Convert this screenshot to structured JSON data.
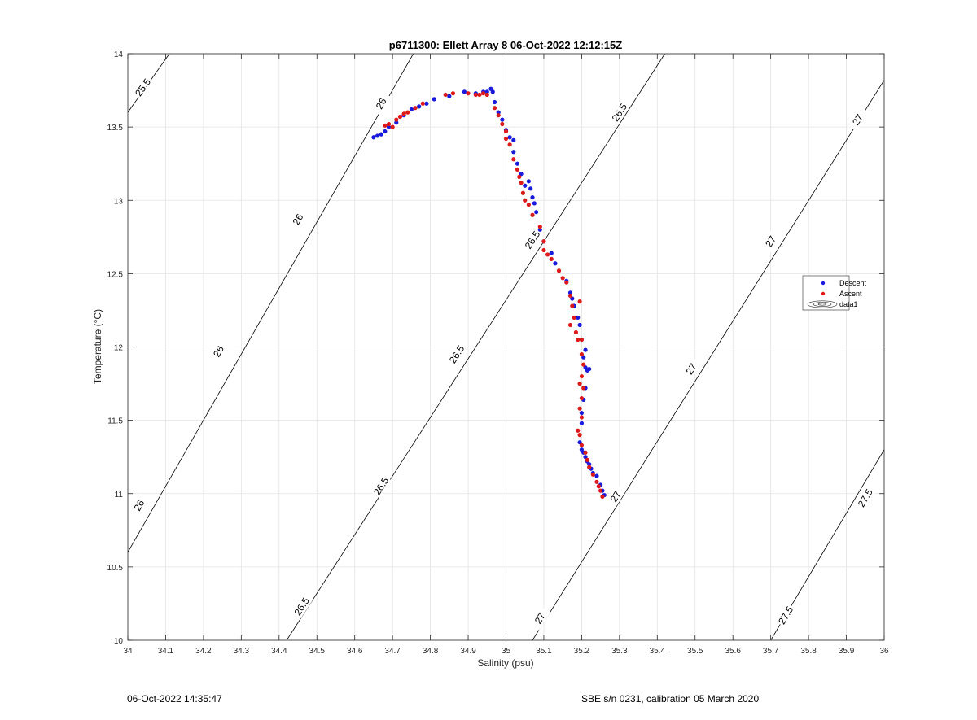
{
  "footer": {
    "timestamp": "06-Oct-2022 14:35:47",
    "calibration": "SBE s/n 0231, calibration 05 March 2020"
  },
  "chart_data": {
    "type": "scatter",
    "title": "p6711300: Ellett Array 8 06-Oct-2022 12:12:15Z",
    "xlabel": "Salinity (psu)",
    "ylabel": "Temperature (°C)",
    "xlim": [
      34,
      36
    ],
    "ylim": [
      10,
      14
    ],
    "xticks": [
      "34",
      "34.1",
      "34.2",
      "34.3",
      "34.4",
      "34.5",
      "34.6",
      "34.7",
      "34.8",
      "34.9",
      "35",
      "35.1",
      "35.2",
      "35.3",
      "35.4",
      "35.5",
      "35.6",
      "35.7",
      "35.8",
      "35.9",
      "36"
    ],
    "yticks": [
      "10",
      "10.5",
      "11",
      "11.5",
      "12",
      "12.5",
      "13",
      "13.5",
      "14"
    ],
    "grid": true,
    "legend_position": "right",
    "legend": [
      "Descent",
      "Ascent",
      "data1"
    ],
    "colors": {
      "Descent": "#1a1adc",
      "Ascent": "#dc1a1a",
      "contour": "#000000",
      "grid": "#e3e3e3"
    },
    "contours": [
      {
        "label": "25.5",
        "points": [
          [
            34,
            13.6
          ],
          [
            34.11,
            14.0
          ]
        ],
        "labels_at": [
          [
            34.04,
            13.77
          ]
        ]
      },
      {
        "label": "26",
        "points": [
          [
            34,
            10.6
          ],
          [
            34.755,
            14.0
          ]
        ],
        "labels_at": [
          [
            34.03,
            10.92
          ],
          [
            34.24,
            11.97
          ],
          [
            34.45,
            12.87
          ],
          [
            34.67,
            13.66
          ]
        ]
      },
      {
        "label": "26.5",
        "points": [
          [
            34.42,
            10.0
          ],
          [
            35.42,
            14.0
          ]
        ],
        "labels_at": [
          [
            34.46,
            10.23
          ],
          [
            34.67,
            11.05
          ],
          [
            34.87,
            11.95
          ],
          [
            35.07,
            12.73
          ],
          [
            35.3,
            13.6
          ]
        ]
      },
      {
        "label": "27",
        "points": [
          [
            35.07,
            10.0
          ],
          [
            36,
            13.82
          ]
        ],
        "labels_at": [
          [
            35.09,
            10.15
          ],
          [
            35.29,
            10.98
          ],
          [
            35.49,
            11.85
          ],
          [
            35.7,
            12.72
          ],
          [
            35.93,
            13.55
          ]
        ]
      },
      {
        "label": "27.5",
        "points": [
          [
            35.7,
            10.0
          ],
          [
            36,
            11.3
          ]
        ],
        "labels_at": [
          [
            35.74,
            10.17
          ],
          [
            35.95,
            10.97
          ]
        ]
      }
    ],
    "series": [
      {
        "name": "Descent",
        "points": [
          [
            34.65,
            13.43
          ],
          [
            34.66,
            13.44
          ],
          [
            34.67,
            13.45
          ],
          [
            34.68,
            13.47
          ],
          [
            34.69,
            13.5
          ],
          [
            34.71,
            13.53
          ],
          [
            34.73,
            13.58
          ],
          [
            34.75,
            13.62
          ],
          [
            34.77,
            13.64
          ],
          [
            34.79,
            13.66
          ],
          [
            34.81,
            13.69
          ],
          [
            34.85,
            13.71
          ],
          [
            34.89,
            13.74
          ],
          [
            34.92,
            13.73
          ],
          [
            34.94,
            13.74
          ],
          [
            34.95,
            13.74
          ],
          [
            34.96,
            13.76
          ],
          [
            34.965,
            13.74
          ],
          [
            34.97,
            13.67
          ],
          [
            34.98,
            13.6
          ],
          [
            34.99,
            13.55
          ],
          [
            35.0,
            13.48
          ],
          [
            35.01,
            13.43
          ],
          [
            35.02,
            13.41
          ],
          [
            35.02,
            13.33
          ],
          [
            35.03,
            13.25
          ],
          [
            35.04,
            13.18
          ],
          [
            35.05,
            13.1
          ],
          [
            35.06,
            13.13
          ],
          [
            35.065,
            13.08
          ],
          [
            35.07,
            13.02
          ],
          [
            35.075,
            12.98
          ],
          [
            35.08,
            12.92
          ],
          [
            35.09,
            12.8
          ],
          [
            35.1,
            12.72
          ],
          [
            35.12,
            12.64
          ],
          [
            35.13,
            12.57
          ],
          [
            35.16,
            12.45
          ],
          [
            35.17,
            12.37
          ],
          [
            35.175,
            12.33
          ],
          [
            35.18,
            12.28
          ],
          [
            35.19,
            12.2
          ],
          [
            35.195,
            12.15
          ],
          [
            35.2,
            12.05
          ],
          [
            35.21,
            11.98
          ],
          [
            35.205,
            11.93
          ],
          [
            35.21,
            11.86
          ],
          [
            35.215,
            11.84
          ],
          [
            35.22,
            11.85
          ],
          [
            35.21,
            11.72
          ],
          [
            35.205,
            11.64
          ],
          [
            35.2,
            11.55
          ],
          [
            35.2,
            11.48
          ],
          [
            35.195,
            11.35
          ],
          [
            35.2,
            11.3
          ],
          [
            35.205,
            11.28
          ],
          [
            35.21,
            11.25
          ],
          [
            35.215,
            11.22
          ],
          [
            35.22,
            11.2
          ],
          [
            35.225,
            11.17
          ],
          [
            35.23,
            11.14
          ],
          [
            35.24,
            11.12
          ],
          [
            35.25,
            11.06
          ],
          [
            35.255,
            11.02
          ],
          [
            35.26,
            10.99
          ]
        ]
      },
      {
        "name": "Ascent",
        "points": [
          [
            34.68,
            13.51
          ],
          [
            34.69,
            13.52
          ],
          [
            34.7,
            13.5
          ],
          [
            34.71,
            13.55
          ],
          [
            34.72,
            13.57
          ],
          [
            34.73,
            13.59
          ],
          [
            34.74,
            13.6
          ],
          [
            34.76,
            13.63
          ],
          [
            34.78,
            13.66
          ],
          [
            34.84,
            13.72
          ],
          [
            34.86,
            13.73
          ],
          [
            34.9,
            13.73
          ],
          [
            34.92,
            13.72
          ],
          [
            34.93,
            13.72
          ],
          [
            34.94,
            13.73
          ],
          [
            34.95,
            13.72
          ],
          [
            34.97,
            13.63
          ],
          [
            34.98,
            13.58
          ],
          [
            34.99,
            13.52
          ],
          [
            35.0,
            13.47
          ],
          [
            35.0,
            13.42
          ],
          [
            35.01,
            13.38
          ],
          [
            35.02,
            13.28
          ],
          [
            35.03,
            13.21
          ],
          [
            35.035,
            13.16
          ],
          [
            35.04,
            13.12
          ],
          [
            35.045,
            13.05
          ],
          [
            35.05,
            13.0
          ],
          [
            35.06,
            12.97
          ],
          [
            35.07,
            12.9
          ],
          [
            35.09,
            12.82
          ],
          [
            35.1,
            12.72
          ],
          [
            35.1,
            12.66
          ],
          [
            35.11,
            12.63
          ],
          [
            35.12,
            12.6
          ],
          [
            35.14,
            12.52
          ],
          [
            35.15,
            12.47
          ],
          [
            35.16,
            12.44
          ],
          [
            35.17,
            12.35
          ],
          [
            35.175,
            12.28
          ],
          [
            35.18,
            12.2
          ],
          [
            35.17,
            12.15
          ],
          [
            35.185,
            12.1
          ],
          [
            35.19,
            12.05
          ],
          [
            35.2,
            12.05
          ],
          [
            35.195,
            12.31
          ],
          [
            35.2,
            11.95
          ],
          [
            35.205,
            11.88
          ],
          [
            35.2,
            11.8
          ],
          [
            35.195,
            11.75
          ],
          [
            35.205,
            11.72
          ],
          [
            35.2,
            11.65
          ],
          [
            35.195,
            11.58
          ],
          [
            35.2,
            11.52
          ],
          [
            35.19,
            11.43
          ],
          [
            35.195,
            11.4
          ],
          [
            35.2,
            11.33
          ],
          [
            35.21,
            11.28
          ],
          [
            35.215,
            11.23
          ],
          [
            35.22,
            11.18
          ],
          [
            35.23,
            11.13
          ],
          [
            35.24,
            11.08
          ],
          [
            35.245,
            11.05
          ],
          [
            35.25,
            11.02
          ],
          [
            35.255,
            10.98
          ]
        ]
      }
    ]
  }
}
